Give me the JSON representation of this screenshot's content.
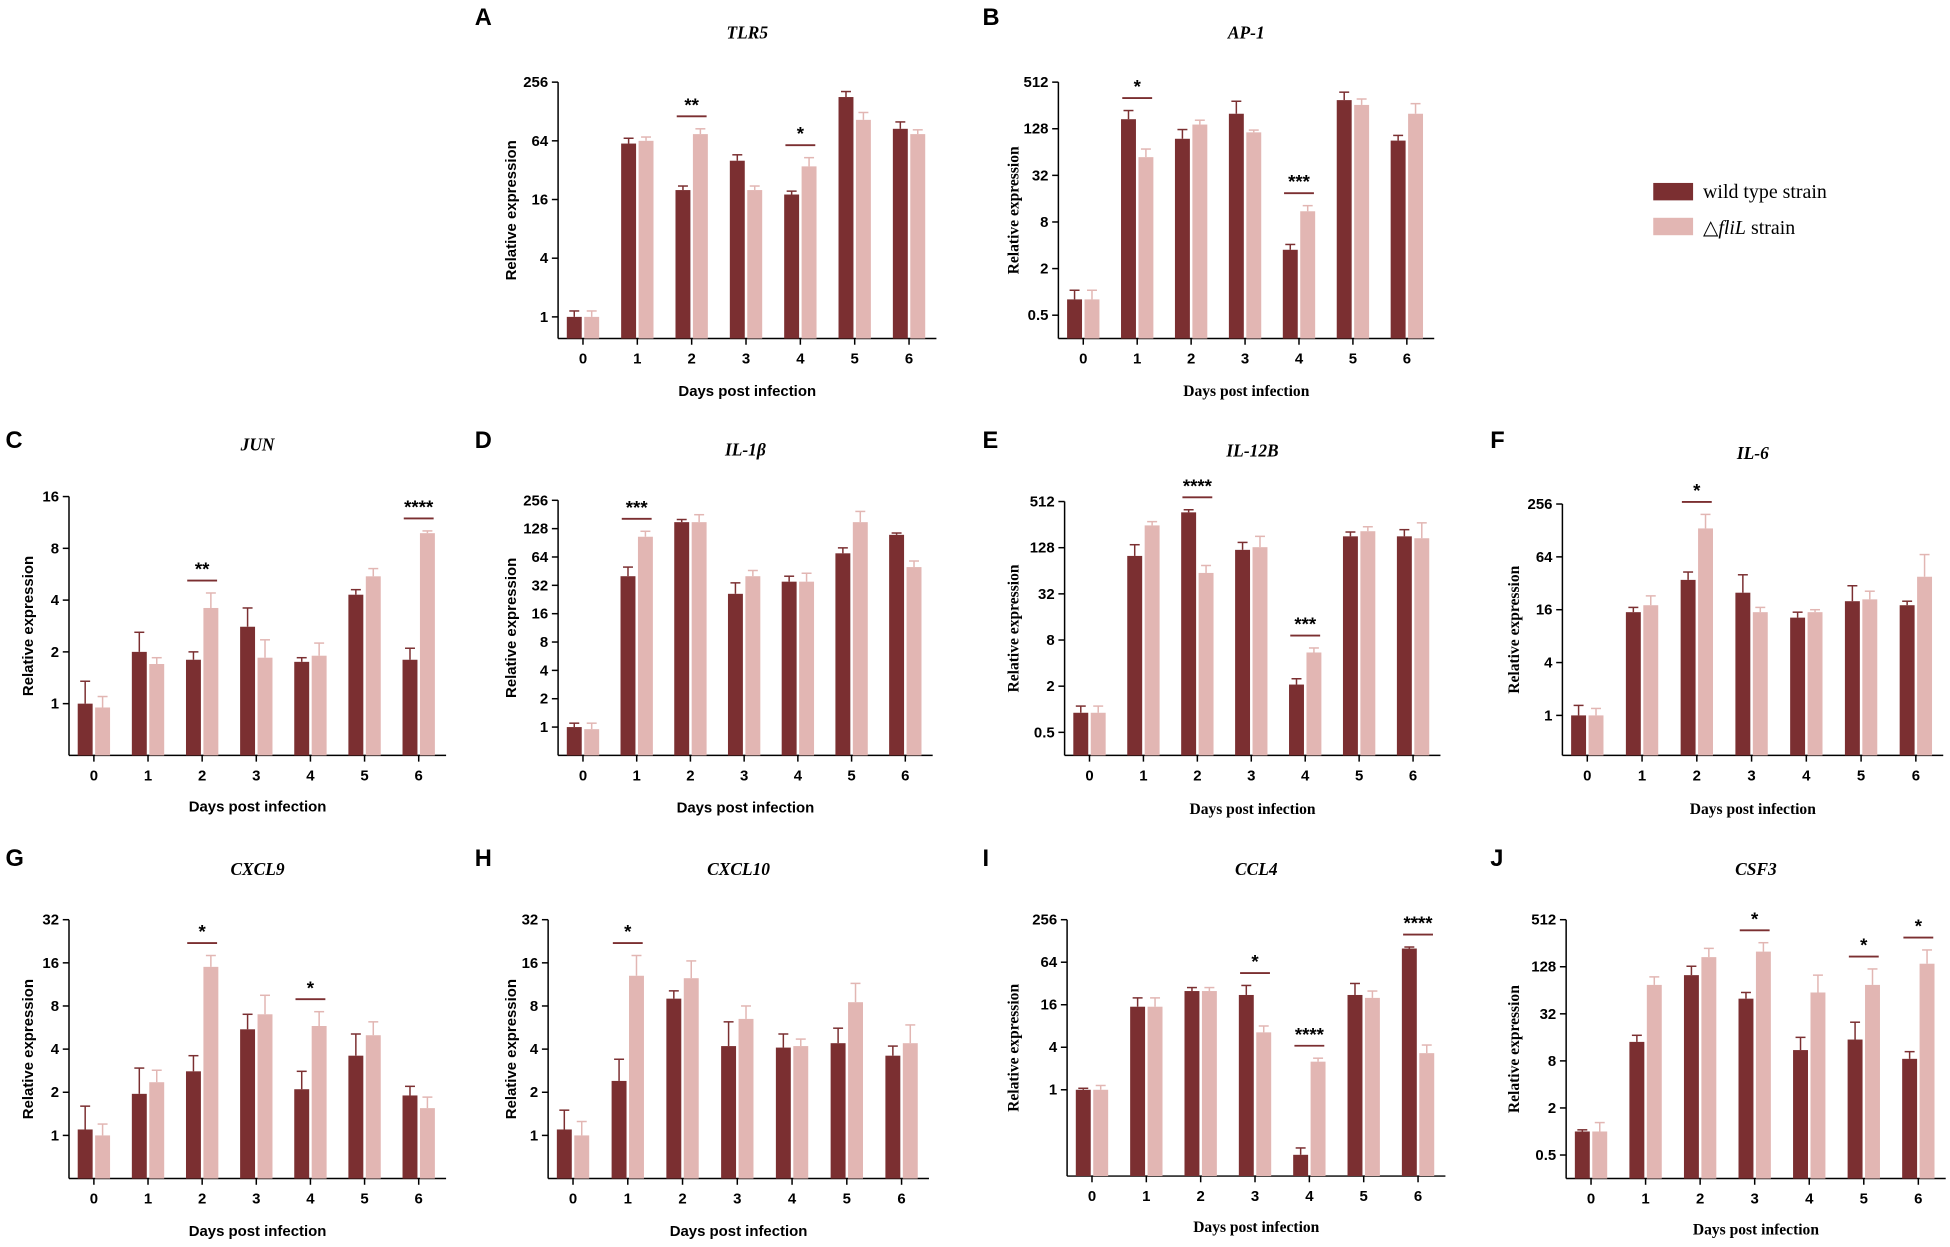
{
  "chart_data": {
    "legend": {
      "items": [
        {
          "name": "wild type strain",
          "color": "#7b2f31"
        },
        {
          "name_prefix": "△",
          "name_gene": "fliL",
          "name_suffix": " strain",
          "color": "#e2b6b3"
        }
      ],
      "position": "right"
    },
    "panels": [
      {
        "letter": "A",
        "title": "TLR5",
        "type": "bar",
        "scale": "log2",
        "xlabel": "Days post infection",
        "ylabel": "Relative expression",
        "label_font": "sans",
        "categories": [
          "0",
          "1",
          "2",
          "3",
          "4",
          "5",
          "6"
        ],
        "yticks": [
          1,
          4,
          16,
          64,
          256
        ],
        "ytick_labels": [
          "1",
          "4",
          "16",
          "64",
          "256"
        ],
        "ylim": [
          0.6,
          256
        ],
        "series": [
          {
            "name": "wild type strain",
            "values": [
              1.0,
              60,
              20,
              40,
              18,
              180,
              85
            ],
            "errors": [
              0.15,
              8,
              2,
              6,
              1.5,
              25,
              15
            ]
          },
          {
            "name": "△fliL strain",
            "values": [
              1.0,
              64,
              75,
              20,
              35,
              105,
              75
            ],
            "errors": [
              0.15,
              6,
              10,
              2,
              8,
              20,
              8
            ]
          }
        ],
        "significance": [
          {
            "index": 2,
            "label": "**"
          },
          {
            "index": 4,
            "label": "*"
          }
        ]
      },
      {
        "letter": "B",
        "title": "AP-1",
        "type": "bar",
        "scale": "log2",
        "xlabel": "Days post infection",
        "ylabel": "Relative expression",
        "label_font": "serif",
        "categories": [
          "0",
          "1",
          "2",
          "3",
          "4",
          "5",
          "6"
        ],
        "yticks": [
          0.5,
          2,
          8,
          32,
          128,
          512
        ],
        "ytick_labels": [
          "0.5",
          "2",
          "8",
          "32",
          "128",
          "512"
        ],
        "ylim": [
          0.25,
          512
        ],
        "series": [
          {
            "name": "wild type strain",
            "values": [
              0.8,
              170,
              95,
              200,
              3.5,
              300,
              90
            ],
            "errors": [
              0.25,
              50,
              30,
              90,
              0.6,
              80,
              15
            ]
          },
          {
            "name": "△fliL strain",
            "values": [
              0.8,
              55,
              145,
              115,
              11,
              260,
              200
            ],
            "errors": [
              0.25,
              15,
              20,
              8,
              2,
              50,
              70
            ]
          }
        ],
        "significance": [
          {
            "index": 1,
            "label": "*"
          },
          {
            "index": 4,
            "label": "***"
          }
        ]
      },
      {
        "letter": "C",
        "title": "JUN",
        "type": "bar",
        "scale": "log2",
        "xlabel": "Days post infection",
        "ylabel": "Relative expression",
        "label_font": "sans",
        "categories": [
          "0",
          "1",
          "2",
          "3",
          "4",
          "5",
          "6"
        ],
        "yticks": [
          1,
          2,
          4,
          8,
          16
        ],
        "ytick_labels": [
          "1",
          "2",
          "4",
          "8",
          "16"
        ],
        "ylim": [
          0.5,
          16
        ],
        "series": [
          {
            "name": "wild type strain",
            "values": [
              1.0,
              2.0,
              1.8,
              2.8,
              1.75,
              4.3,
              1.8
            ],
            "errors": [
              0.35,
              0.6,
              0.2,
              0.8,
              0.1,
              0.3,
              0.3
            ]
          },
          {
            "name": "△fliL strain",
            "values": [
              0.95,
              1.7,
              3.6,
              1.85,
              1.9,
              5.5,
              9.8
            ],
            "errors": [
              0.15,
              0.15,
              0.8,
              0.5,
              0.35,
              0.6,
              0.3
            ]
          }
        ],
        "significance": [
          {
            "index": 2,
            "label": "**"
          },
          {
            "index": 6,
            "label": "****"
          }
        ]
      },
      {
        "letter": "D",
        "title": "IL-1β",
        "type": "bar",
        "scale": "log2",
        "xlabel": "Days post infection",
        "ylabel": "Relative expression",
        "label_font": "sans",
        "categories": [
          "0",
          "1",
          "2",
          "3",
          "4",
          "5",
          "6"
        ],
        "yticks": [
          1,
          2,
          4,
          8,
          16,
          32,
          64,
          128,
          256
        ],
        "ytick_labels": [
          "1",
          "2",
          "4",
          "8",
          "16",
          "32",
          "64",
          "128",
          "256"
        ],
        "ylim": [
          0.5,
          256
        ],
        "series": [
          {
            "name": "wild type strain",
            "values": [
              1.0,
              40,
              150,
              26,
              35,
              70,
              110
            ],
            "errors": [
              0.1,
              10,
              10,
              8,
              5,
              10,
              5
            ]
          },
          {
            "name": "△fliL strain",
            "values": [
              0.95,
              105,
              150,
              40,
              35,
              150,
              50
            ],
            "errors": [
              0.15,
              15,
              30,
              6,
              8,
              45,
              8
            ]
          }
        ],
        "significance": [
          {
            "index": 1,
            "label": "***"
          }
        ]
      },
      {
        "letter": "E",
        "title": "IL-12B",
        "type": "bar",
        "scale": "log2",
        "xlabel": "Days post infection",
        "ylabel": "Relative expression",
        "label_font": "serif",
        "categories": [
          "0",
          "1",
          "2",
          "3",
          "4",
          "5",
          "6"
        ],
        "yticks": [
          0.5,
          2,
          8,
          32,
          128,
          512
        ],
        "ytick_labels": [
          "0.5",
          "2",
          "8",
          "32",
          "128",
          "512"
        ],
        "ylim": [
          0.25,
          512
        ],
        "series": [
          {
            "name": "wild type strain",
            "values": [
              0.9,
              100,
              370,
              120,
              2.1,
              180,
              180
            ],
            "errors": [
              0.2,
              40,
              30,
              30,
              0.4,
              25,
              40
            ]
          },
          {
            "name": "△fliL strain",
            "values": [
              0.9,
              250,
              60,
              130,
              5.5,
              210,
              170
            ],
            "errors": [
              0.2,
              30,
              15,
              50,
              0.8,
              30,
              100
            ]
          }
        ],
        "significance": [
          {
            "index": 2,
            "label": "****"
          },
          {
            "index": 4,
            "label": "***"
          }
        ]
      },
      {
        "letter": "F",
        "title": "IL-6",
        "type": "bar",
        "scale": "log2",
        "xlabel": "Days post infection",
        "ylabel": "Relative expression",
        "label_font": "serif",
        "categories": [
          "0",
          "1",
          "2",
          "3",
          "4",
          "5",
          "6"
        ],
        "yticks": [
          1,
          4,
          16,
          64,
          256
        ],
        "ytick_labels": [
          "1",
          "4",
          "16",
          "64",
          "256"
        ],
        "ylim": [
          0.35,
          256
        ],
        "series": [
          {
            "name": "wild type strain",
            "values": [
              1.0,
              15,
              35,
              25,
              13,
              20,
              18
            ],
            "errors": [
              0.3,
              2,
              8,
              15,
              2,
              10,
              2
            ]
          },
          {
            "name": "△fliL strain",
            "values": [
              1.0,
              18,
              135,
              15,
              15,
              21,
              38
            ],
            "errors": [
              0.2,
              5,
              60,
              2,
              1,
              5,
              30
            ]
          }
        ],
        "significance": [
          {
            "index": 2,
            "label": "*"
          }
        ]
      },
      {
        "letter": "G",
        "title": "CXCL9",
        "type": "bar",
        "scale": "log2",
        "xlabel": "Days post infection",
        "ylabel": "Relative expression",
        "label_font": "sans",
        "categories": [
          "0",
          "1",
          "2",
          "3",
          "4",
          "5",
          "6"
        ],
        "yticks": [
          1,
          2,
          4,
          8,
          16,
          32
        ],
        "ytick_labels": [
          "1",
          "2",
          "4",
          "8",
          "16",
          "32"
        ],
        "ylim": [
          0.5,
          32
        ],
        "series": [
          {
            "name": "wild type strain",
            "values": [
              1.1,
              1.95,
              2.8,
              5.5,
              2.1,
              3.6,
              1.9
            ],
            "errors": [
              0.5,
              1.0,
              0.8,
              1.5,
              0.7,
              1.5,
              0.3
            ]
          },
          {
            "name": "△fliL strain",
            "values": [
              1.0,
              2.35,
              15,
              7.0,
              5.8,
              5.0,
              1.55
            ],
            "errors": [
              0.2,
              0.5,
              3,
              2.5,
              1.5,
              1.2,
              0.3
            ]
          }
        ],
        "significance": [
          {
            "index": 2,
            "label": "*"
          },
          {
            "index": 4,
            "label": "*"
          }
        ]
      },
      {
        "letter": "H",
        "title": "CXCL10",
        "type": "bar",
        "scale": "log2",
        "xlabel": "Days post infection",
        "ylabel": "Relative expression",
        "label_font": "sans",
        "categories": [
          "0",
          "1",
          "2",
          "3",
          "4",
          "5",
          "6"
        ],
        "yticks": [
          1,
          2,
          4,
          8,
          16,
          32
        ],
        "ytick_labels": [
          "1",
          "2",
          "4",
          "8",
          "16",
          "32"
        ],
        "ylim": [
          0.5,
          32
        ],
        "series": [
          {
            "name": "wild type strain",
            "values": [
              1.1,
              2.4,
              9.0,
              4.2,
              4.1,
              4.4,
              3.6
            ],
            "errors": [
              0.4,
              1.0,
              1.2,
              2.0,
              1.0,
              1.2,
              0.6
            ]
          },
          {
            "name": "△fliL strain",
            "values": [
              1.0,
              13,
              12.5,
              6.5,
              4.2,
              8.5,
              4.4
            ],
            "errors": [
              0.25,
              5,
              4,
              1.5,
              0.5,
              3,
              1.5
            ]
          }
        ],
        "significance": [
          {
            "index": 1,
            "label": "*"
          }
        ]
      },
      {
        "letter": "I",
        "title": "CCL4",
        "type": "bar",
        "scale": "log2",
        "xlabel": "Days post infection",
        "ylabel": "Relative expression",
        "label_font": "serif",
        "categories": [
          "0",
          "1",
          "2",
          "3",
          "4",
          "5",
          "6"
        ],
        "yticks": [
          1,
          4,
          16,
          64,
          256
        ],
        "ytick_labels": [
          "1",
          "4",
          "16",
          "64",
          "256"
        ],
        "ylim": [
          0.06,
          256
        ],
        "series": [
          {
            "name": "wild type strain",
            "values": [
              1.0,
              15,
              25,
              22,
              0.12,
              22,
              100
            ],
            "errors": [
              0.05,
              5,
              3,
              8,
              0.03,
              10,
              5
            ]
          },
          {
            "name": "△fliL strain",
            "values": [
              1.0,
              15,
              25,
              6.5,
              2.5,
              20,
              3.3
            ],
            "errors": [
              0.15,
              5,
              3,
              1.5,
              0.3,
              5,
              1
            ]
          }
        ],
        "significance": [
          {
            "index": 3,
            "label": "*"
          },
          {
            "index": 4,
            "label": "****"
          },
          {
            "index": 6,
            "label": "****"
          }
        ]
      },
      {
        "letter": "J",
        "title": "CSF3",
        "type": "bar",
        "scale": "log2",
        "xlabel": "Days post infection",
        "ylabel": "Relative expression",
        "label_font": "serif",
        "categories": [
          "0",
          "1",
          "2",
          "3",
          "4",
          "5",
          "6"
        ],
        "yticks": [
          0.5,
          2,
          8,
          32,
          128,
          512
        ],
        "ytick_labels": [
          "0.5",
          "2",
          "8",
          "32",
          "128",
          "512"
        ],
        "ylim": [
          0.25,
          512
        ],
        "series": [
          {
            "name": "wild type strain",
            "values": [
              1.0,
              14,
              100,
              50,
              11,
              15,
              8.5
            ],
            "errors": [
              0.05,
              3,
              30,
              10,
              5,
              10,
              2
            ]
          },
          {
            "name": "△fliL strain",
            "values": [
              1.0,
              75,
              170,
              200,
              60,
              75,
              140
            ],
            "errors": [
              0.3,
              20,
              50,
              60,
              40,
              45,
              70
            ]
          }
        ],
        "significance": [
          {
            "index": 3,
            "label": "*"
          },
          {
            "index": 5,
            "label": "*"
          },
          {
            "index": 6,
            "label": "*"
          }
        ]
      }
    ]
  }
}
